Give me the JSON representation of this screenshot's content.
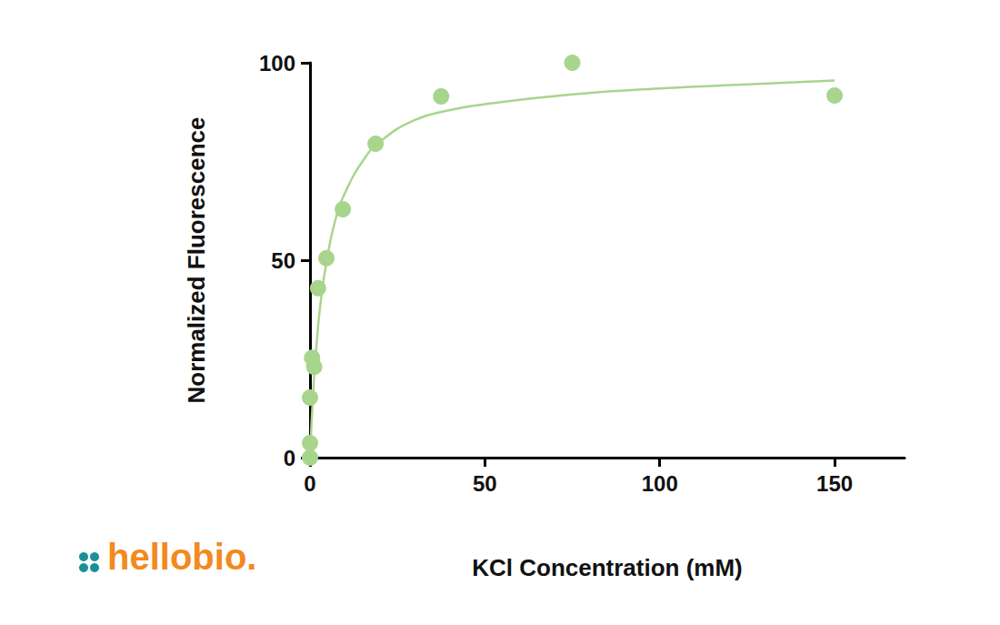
{
  "chart_data": {
    "type": "scatter",
    "x_label": "KCl Concentration (mM)",
    "y_label": "Normalized Fluorescence",
    "xlim": [
      0,
      170
    ],
    "xticks": [
      0,
      50,
      100,
      150
    ],
    "ylim": [
      0,
      100
    ],
    "yticks": [
      0,
      50,
      100
    ],
    "grid": false,
    "annotations": [
      {
        "text": "hellobio."
      }
    ],
    "series": [
      {
        "type": "scatter",
        "marker": "circle",
        "color": "#a8d58c",
        "x": [
          0,
          0,
          0,
          0.6,
          1.2,
          2.3,
          4.7,
          9.4,
          18.75,
          37.5,
          75,
          150
        ],
        "values": [
          0,
          3.7,
          15.2,
          25.3,
          23,
          42.9,
          50.5,
          62.9,
          79.5,
          91.5,
          100,
          91.7
        ]
      },
      {
        "type": "line",
        "line_style": "solid",
        "color": "#a8d58c",
        "x": [
          0,
          1,
          2,
          3,
          5,
          7.5,
          10,
          15,
          20,
          30,
          40,
          50,
          75,
          100,
          125,
          150
        ],
        "values": [
          0,
          18,
          30,
          39,
          51,
          61,
          67,
          75,
          80,
          85.5,
          88,
          89.5,
          92,
          93.5,
          94.5,
          95.5
        ]
      }
    ]
  }
}
